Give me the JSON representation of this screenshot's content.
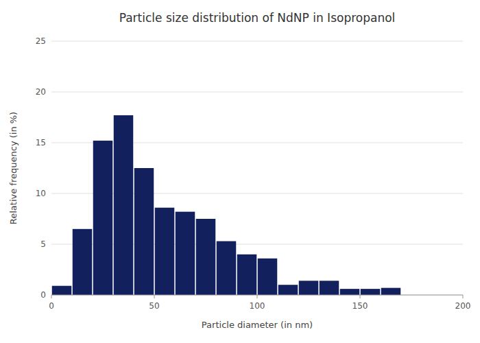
{
  "chart_data": {
    "type": "histogram",
    "title": "Particle size distribution of NdNP in Isopropanol",
    "xlabel": "Particle diameter (in nm)",
    "ylabel": "Relative frequency (in %)",
    "bins": [
      0,
      10,
      20,
      30,
      40,
      50,
      60,
      70,
      80,
      90,
      100,
      110,
      120,
      130,
      140,
      150,
      160,
      170
    ],
    "values": [
      0.9,
      6.5,
      15.2,
      17.7,
      12.5,
      8.6,
      8.2,
      7.5,
      5.3,
      4.0,
      3.6,
      1.0,
      1.4,
      1.4,
      0.6,
      0.6,
      0.7
    ],
    "color": "#12205e",
    "xlim": [
      0,
      200
    ],
    "ylim": [
      0,
      25
    ],
    "xticks": [
      0,
      50,
      100,
      150,
      200
    ],
    "yticks": [
      0,
      5,
      10,
      15,
      20,
      25
    ],
    "grid": true
  }
}
